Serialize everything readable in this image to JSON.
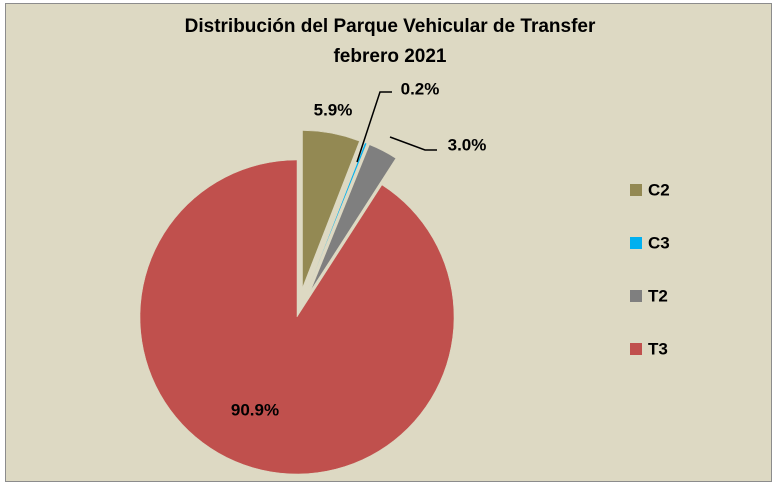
{
  "chart_data": {
    "type": "pie",
    "title": "Distribución del Parque Vehicular de Transfer",
    "subtitle": "febrero 2021",
    "categories": [
      "C2",
      "C3",
      "T2",
      "T3"
    ],
    "values": [
      5.9,
      0.2,
      3.0,
      90.9
    ],
    "value_labels": [
      "5.9%",
      "0.2%",
      "3.0%",
      "90.9%"
    ],
    "colors": [
      "#938953",
      "#00b0f0",
      "#7f7f7f",
      "#c0504d"
    ],
    "legend": "right"
  }
}
